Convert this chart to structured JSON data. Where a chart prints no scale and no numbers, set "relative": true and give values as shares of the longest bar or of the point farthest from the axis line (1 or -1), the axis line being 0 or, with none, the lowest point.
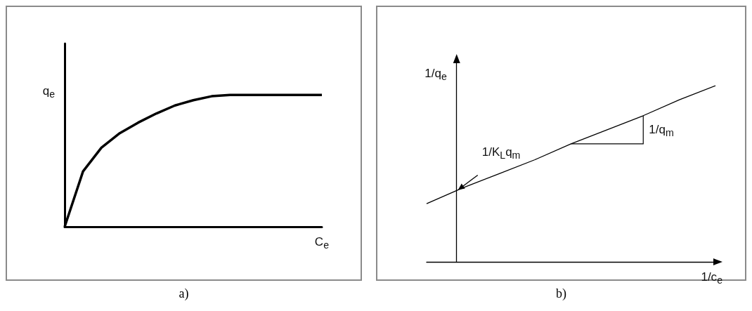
{
  "chart_data": [
    {
      "type": "line",
      "title": "a)",
      "xlabel": "C$_{e}$",
      "ylabel": "q$_{e}$",
      "relative": true,
      "color": "#000000",
      "categories": [
        null,
        null,
        null,
        null,
        null,
        null,
        null,
        null,
        null,
        null,
        null,
        null,
        null,
        null,
        null
      ],
      "values": [
        0,
        0.42,
        0.6,
        0.71,
        0.79,
        0.86,
        0.92,
        0.96,
        0.99,
        1,
        1,
        1,
        1,
        1,
        1
      ]
    },
    {
      "type": "line",
      "title": "b)",
      "xlabel": "1/c$_{e}$",
      "ylabel": "1/q$_{e}$",
      "relative": true,
      "color": "#000000",
      "categories": [
        null,
        null,
        null,
        null,
        null,
        null,
        null,
        null,
        null
      ],
      "values": [
        0.33,
        0.42,
        0.5,
        0.58,
        0.67,
        0.75,
        0.83,
        0.92,
        1
      ],
      "annotations": [
        "1/K$_{L}$q$_{m}$",
        "1/q$_{m}$"
      ]
    }
  ]
}
